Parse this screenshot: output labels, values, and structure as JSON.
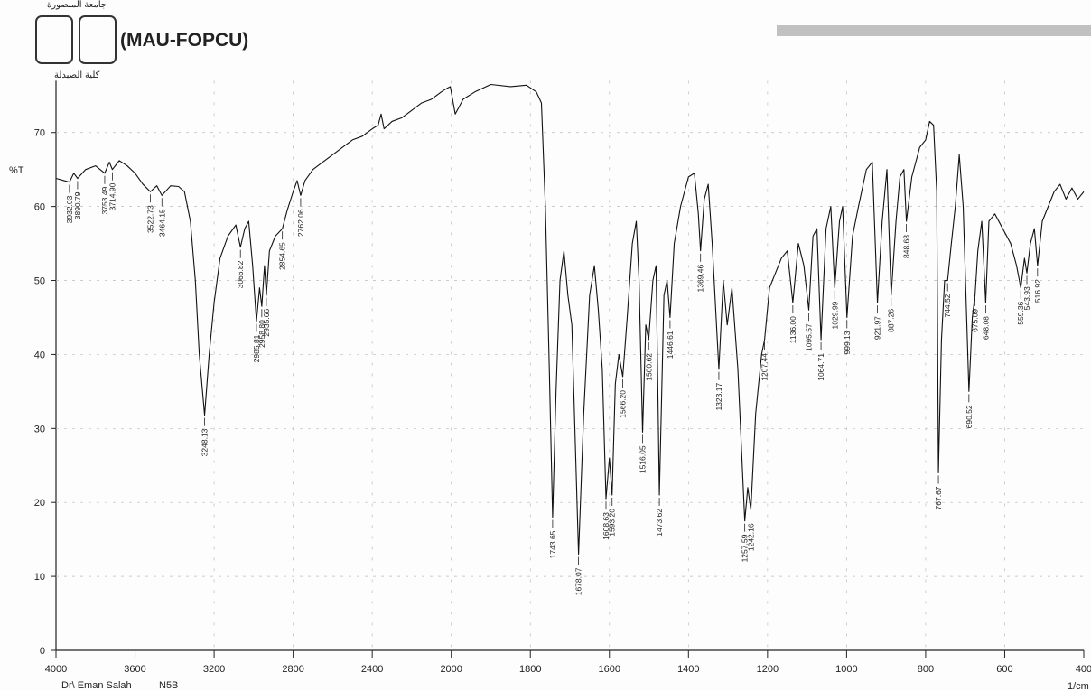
{
  "header": {
    "logo_text": "(MAU-FOPCU)",
    "university": "جامعة المنصورة",
    "faculty": "كلية الصيدلة"
  },
  "footer": {
    "operator": "Dr\\ Eman Salah",
    "sample": "N5B"
  },
  "chart_data": {
    "type": "line",
    "y_label": "%T",
    "x_label": "1/cm",
    "color": "#111111",
    "grid": true,
    "xlim": [
      4000,
      400
    ],
    "ylim": [
      0,
      77
    ],
    "xticks": [
      4000,
      3600,
      3200,
      2800,
      2400,
      2000,
      1800,
      1600,
      1400,
      1200,
      1000,
      800,
      600,
      400
    ],
    "yticks": [
      0,
      10,
      20,
      30,
      40,
      50,
      60,
      70
    ],
    "x": [
      4000,
      3960,
      3932.03,
      3910,
      3890.79,
      3850,
      3800,
      3753.49,
      3730,
      3714.9,
      3680,
      3640,
      3600,
      3560,
      3522.73,
      3490,
      3464.15,
      3420,
      3380,
      3350,
      3320,
      3295,
      3275,
      3248.13,
      3225,
      3200,
      3170,
      3130,
      3090,
      3066.82,
      3045,
      3025,
      3005,
      2985.81,
      2970,
      2958.8,
      2945,
      2935.66,
      2920,
      2890,
      2854.65,
      2830,
      2800,
      2780,
      2762.06,
      2740,
      2700,
      2650,
      2600,
      2550,
      2500,
      2450,
      2400,
      2370,
      2355,
      2340,
      2300,
      2250,
      2200,
      2150,
      2100,
      2050,
      2020,
      2005,
      1990,
      1970,
      1940,
      1900,
      1850,
      1810,
      1785,
      1772,
      1762,
      1752,
      1743.65,
      1735,
      1725,
      1715,
      1705,
      1695,
      1678.07,
      1665,
      1650,
      1638,
      1628,
      1618,
      1608.63,
      1600,
      1593.2,
      1585,
      1576,
      1566.2,
      1555,
      1542,
      1532,
      1525,
      1516.05,
      1508,
      1500.62,
      1490,
      1482,
      1473.62,
      1462,
      1454,
      1446.61,
      1436,
      1420,
      1400,
      1385,
      1375,
      1369.46,
      1360,
      1350,
      1340,
      1323.17,
      1312,
      1302,
      1290,
      1275,
      1257.59,
      1250,
      1242.16,
      1230,
      1215,
      1207.44,
      1195,
      1180,
      1165,
      1150,
      1136,
      1122,
      1108,
      1095.57,
      1085,
      1075,
      1064.71,
      1052,
      1040,
      1029.99,
      1018,
      1010,
      999.13,
      985,
      970,
      950,
      935,
      921.97,
      910,
      898,
      887.26,
      875,
      865,
      855,
      848.68,
      835,
      815,
      800,
      790,
      780,
      772,
      767.67,
      760,
      752,
      744.52,
      735,
      725,
      715,
      705,
      690.52,
      682,
      675.09,
      668,
      658,
      648.08,
      640,
      625,
      605,
      585,
      570,
      559.36,
      550,
      543.93,
      535,
      525,
      516.92,
      505,
      490,
      475,
      460,
      445,
      430,
      415,
      400
    ],
    "values": [
      63.8,
      63.5,
      63.3,
      64.5,
      63.8,
      65,
      65.5,
      64.5,
      66,
      65,
      66.2,
      65.5,
      64.5,
      63,
      62,
      62.8,
      61.5,
      62.8,
      62.7,
      62,
      58,
      50,
      40,
      31.8,
      40,
      47,
      53,
      56,
      57.5,
      54.5,
      57,
      58,
      52,
      44.5,
      49,
      46.5,
      52,
      48,
      54,
      56,
      57,
      59.5,
      62,
      63.5,
      61.5,
      63.5,
      65,
      66,
      67,
      68,
      69,
      69.5,
      70.5,
      71,
      72.5,
      70.5,
      71.5,
      72,
      73,
      74,
      74.5,
      75.5,
      76,
      76.2,
      72.5,
      74.5,
      75.5,
      76.5,
      76.2,
      76.4,
      75.5,
      74,
      60,
      38,
      18,
      35,
      50,
      54,
      48,
      44,
      13,
      32,
      48,
      52,
      46,
      38,
      20.5,
      26,
      21,
      36,
      40,
      37,
      45,
      55,
      58,
      50,
      29.5,
      44,
      42,
      50,
      52,
      21,
      48,
      50,
      45,
      55,
      60,
      64,
      64.5,
      59,
      54,
      61,
      63,
      55,
      38,
      50,
      44,
      49,
      38,
      17.5,
      22,
      19,
      32,
      40,
      42,
      49,
      51,
      53,
      54,
      47,
      55,
      52,
      46,
      56,
      57,
      42,
      57,
      60,
      49,
      58,
      60,
      45,
      56,
      60,
      65,
      66,
      47,
      58,
      65,
      48,
      58,
      64,
      65,
      58,
      64,
      68,
      69,
      71.5,
      71,
      62,
      24,
      42,
      50,
      50,
      55,
      60,
      67,
      60,
      35,
      45,
      48,
      54,
      58,
      47,
      58,
      59,
      57,
      55,
      52,
      49,
      53,
      51,
      55,
      57,
      52,
      58,
      60,
      62,
      63,
      61,
      62.5,
      61,
      62
    ],
    "peaks": {
      "x": [
        3932.03,
        3890.79,
        3753.49,
        {
          "value": 3714.9,
          "label": "3714.90"
        },
        3522.73,
        3464.15,
        3248.13,
        3066.82,
        2985.81,
        {
          "value": 2958.8,
          "label": "2958.80"
        },
        2935.66,
        2854.65,
        2762.06,
        1743.65,
        1678.07,
        1608.63,
        {
          "value": 1593.2,
          "label": "1593.20"
        },
        {
          "value": 1566.2,
          "label": "1566.20"
        },
        1516.05,
        1500.62,
        1473.62,
        1446.61,
        1369.46,
        1323.17,
        1257.59,
        1242.16,
        1207.44,
        {
          "value": 1136,
          "label": "1136.00"
        },
        1095.57,
        1064.71,
        1029.99,
        999.13,
        921.97,
        887.26,
        848.68,
        767.67,
        744.52,
        690.52,
        675.09,
        648.08,
        559.36,
        543.93,
        516.92
      ],
      "y": [
        63.3,
        63.8,
        64.5,
        65,
        62,
        61.5,
        31.8,
        54.5,
        44.5,
        46.5,
        48,
        57,
        61.5,
        18,
        13,
        20.5,
        21,
        37,
        29.5,
        42,
        21,
        45,
        54,
        38,
        17.5,
        19,
        42,
        47,
        46,
        42,
        49,
        45,
        47,
        48,
        58,
        24,
        50,
        35,
        48,
        47,
        49,
        51,
        52
      ]
    }
  }
}
